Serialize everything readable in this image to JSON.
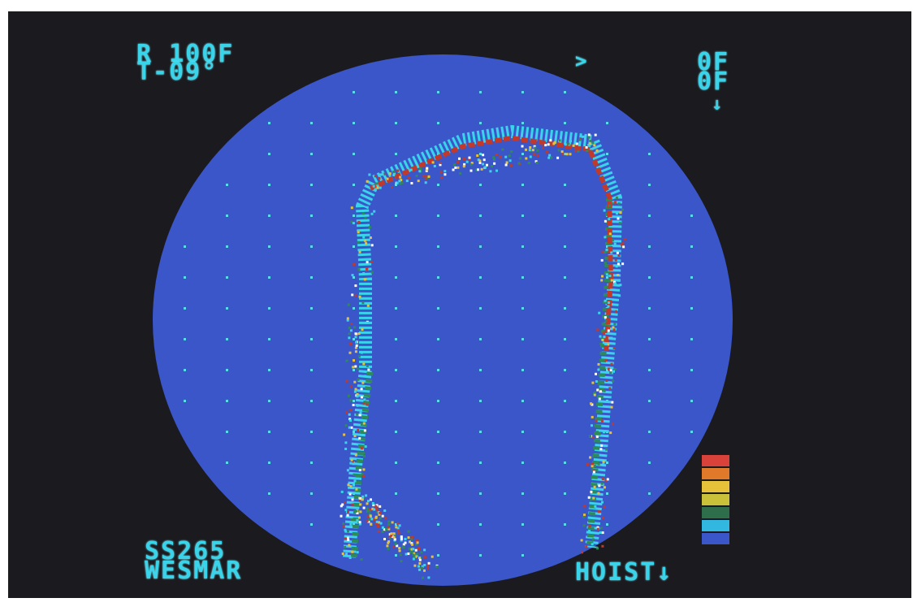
{
  "sonar": {
    "range_readout": "R 100F",
    "tilt_readout": "T-09°",
    "train_arrow_icon": "arrow-right-icon",
    "top_right_line1": "0F",
    "top_right_line2": "0F",
    "down_arrow": "↓",
    "model_line1": "SS265",
    "model_line2": "WESMAR",
    "hoist_label": "HOIST↓",
    "colors": {
      "background": "#1b1a1f",
      "display_disc": "#3a56c9",
      "osd_text": "#39d4ea",
      "echo_weak": "#39d4ea",
      "echo_mid": "#2e8b57",
      "echo_strong": "#c0392b"
    },
    "color_scale": [
      "#d9423a",
      "#e07a2a",
      "#e6c23a",
      "#c9c13a",
      "#2f6e4a",
      "#31b7e0",
      "#3a56c9"
    ]
  }
}
